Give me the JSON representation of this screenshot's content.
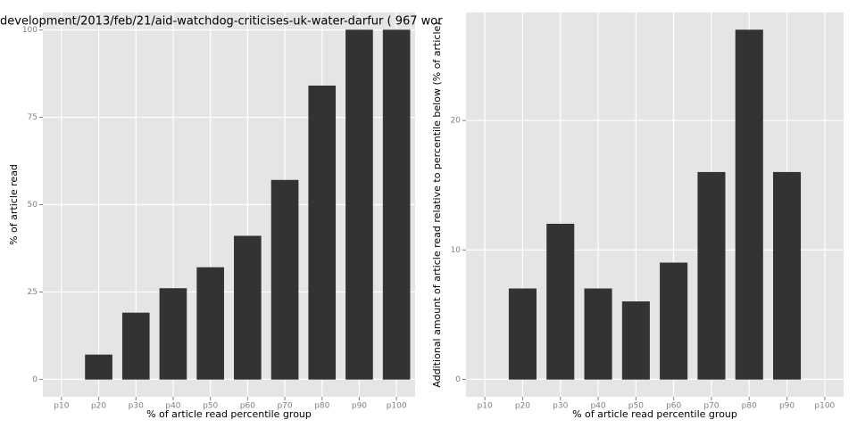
{
  "chart_data": [
    {
      "type": "bar",
      "title": "development/2013/feb/21/aid-watchdog-criticises-uk-water-darfur ( 967 wor",
      "xlabel": "% of article read percentile group",
      "ylabel": "% of article read",
      "categories": [
        "p10",
        "p20",
        "p30",
        "p40",
        "p50",
        "p60",
        "p70",
        "p80",
        "p90",
        "p100"
      ],
      "values": [
        0,
        7,
        19,
        26,
        32,
        41,
        57,
        84,
        100,
        100
      ],
      "color": "#333333",
      "ylim": [
        -5,
        105
      ],
      "yticks": [
        0,
        25,
        50,
        75,
        100
      ],
      "grid": true
    },
    {
      "type": "bar",
      "xlabel": "% of article read percentile group",
      "ylabel": "Additional amount of article read relative to percentile below (% of article)",
      "categories": [
        "p10",
        "p20",
        "p30",
        "p40",
        "p50",
        "p60",
        "p70",
        "p80",
        "p90",
        "p100"
      ],
      "values": [
        0,
        7,
        12,
        7,
        6,
        9,
        16,
        27,
        16,
        0
      ],
      "color": "#333333",
      "ylim": [
        -1.35,
        28.35
      ],
      "yticks": [
        0,
        10,
        20
      ],
      "grid": true
    }
  ]
}
